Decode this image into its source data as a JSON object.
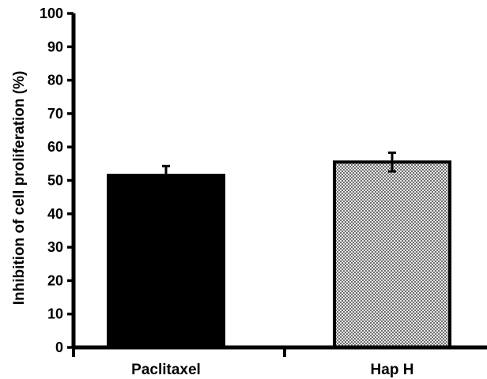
{
  "chart_data": {
    "type": "bar",
    "categories": [
      "Paclitaxel",
      "Hap H"
    ],
    "values": [
      51.5,
      55.5
    ],
    "errors": [
      2.8,
      2.8
    ],
    "ylabel": "Inhibition of cell proliferation (%)",
    "xlabel": "",
    "ylim": [
      0,
      100
    ],
    "yticks": [
      0,
      10,
      20,
      30,
      40,
      50,
      60,
      70,
      80,
      90,
      100
    ],
    "grid": false,
    "bar_styles": [
      "solid-black",
      "crosshatch-gray"
    ],
    "colors": {
      "bar1": "#000000",
      "bar2_fill": "#bdbdbd",
      "axis": "#000000"
    }
  }
}
